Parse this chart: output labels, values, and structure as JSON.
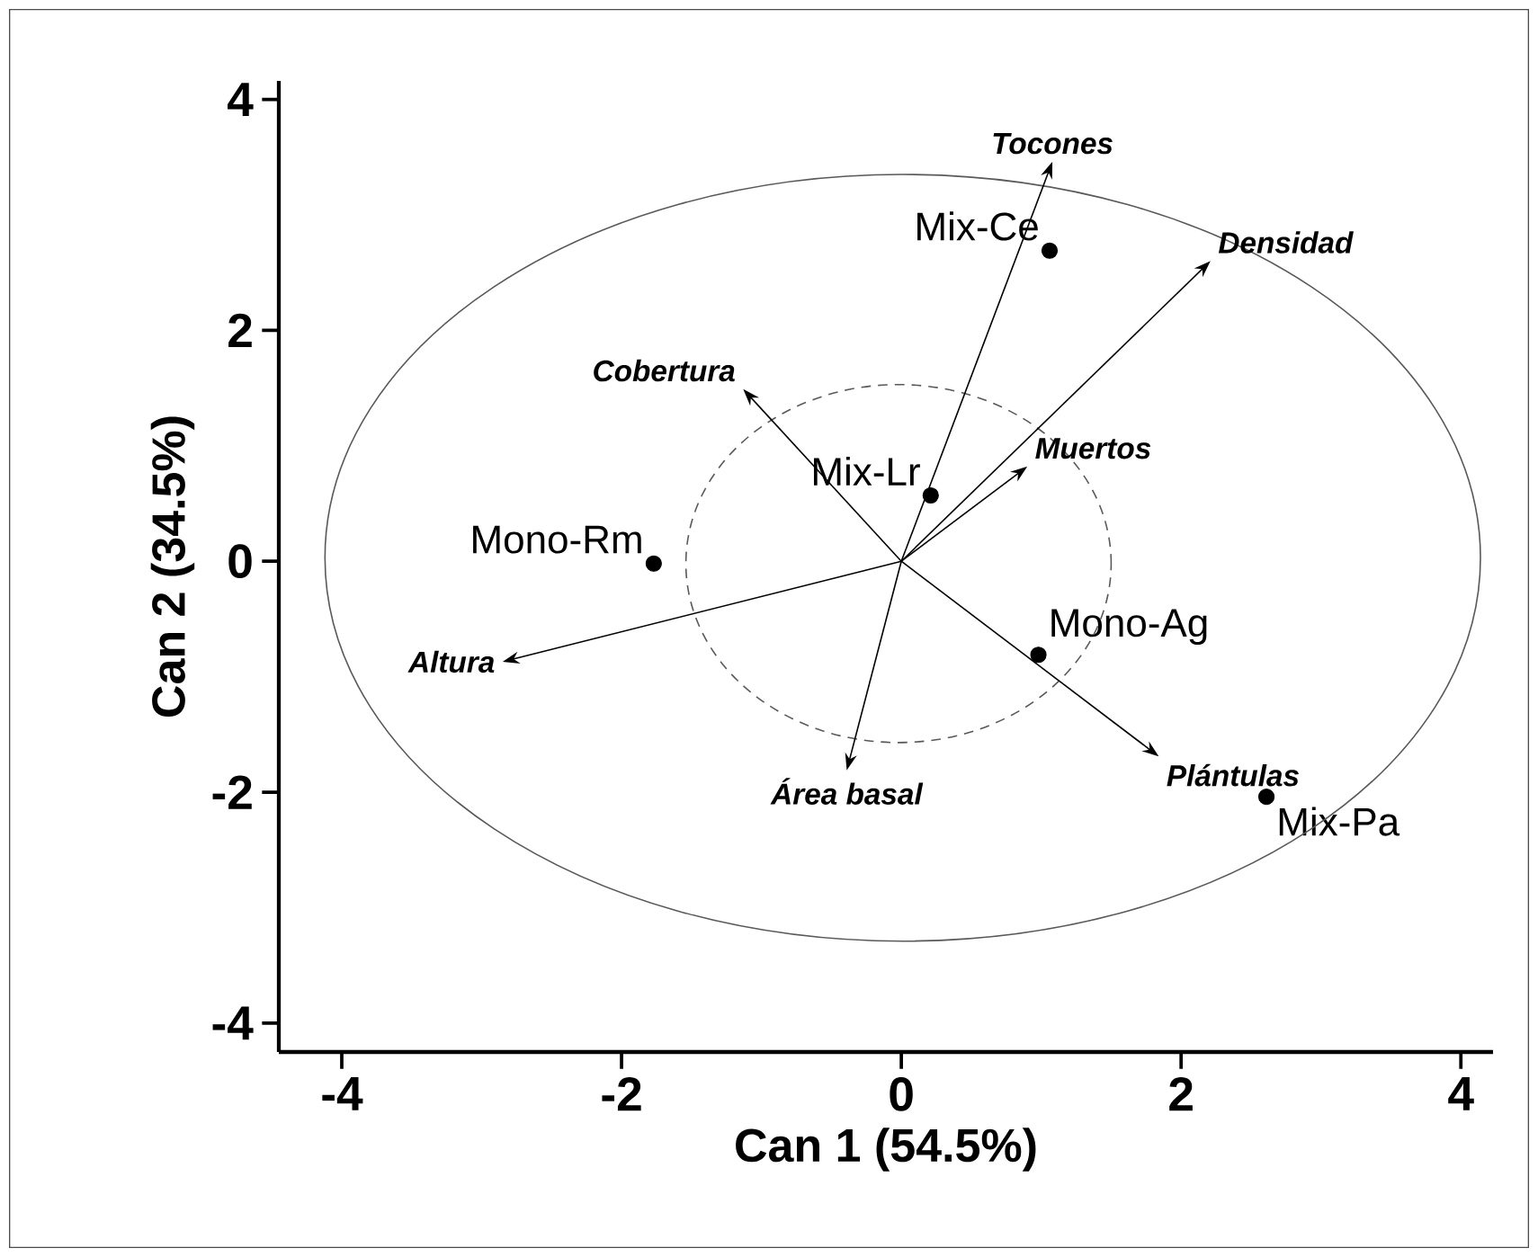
{
  "chart_data": {
    "type": "scatter",
    "xlabel": "Can 1 (54.5%)",
    "ylabel": "Can 2 (34.5%)",
    "xlim": [
      -4.45,
      4.23
    ],
    "ylim": [
      -4.25,
      4.16
    ],
    "xticks": [
      -4,
      -2,
      0,
      2,
      4
    ],
    "yticks": [
      -4,
      -2,
      0,
      2,
      4
    ],
    "series": [
      {
        "color": "#000000",
        "marker": "circle",
        "x": [
          1.06,
          0.21,
          -1.77,
          0.98,
          2.61
        ],
        "values": [
          2.69,
          0.57,
          -0.02,
          -0.81,
          -2.04
        ]
      }
    ],
    "annotations": [
      "Tocones",
      "Densidad",
      "Cobertura",
      "Muertos",
      "Altura",
      "Área basal",
      "Plántulas",
      {
        "text": "Mix-Ce",
        "x": 1.06,
        "y": 2.69
      },
      {
        "text": "Mix-Lr",
        "x": 0.21,
        "y": 0.57
      },
      {
        "text": "Mono-Rm",
        "x": -1.77,
        "y": -0.02
      },
      {
        "text": "Mono-Ag",
        "x": 0.98,
        "y": -0.81
      },
      {
        "text": "Mix-Pa",
        "x": 2.61,
        "y": -2.04
      }
    ]
  }
}
